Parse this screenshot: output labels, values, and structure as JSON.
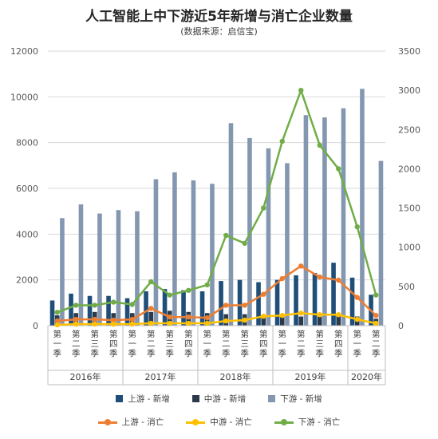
{
  "title": "人工智能上中下游近5年新增与消亡企业数量",
  "subtitle": "(数据来源：启信宝)",
  "chart_data": {
    "type": "bar+line",
    "categories": [
      "第一季",
      "第二季",
      "第三季",
      "第四季",
      "第一季",
      "第二季",
      "第三季",
      "第四季",
      "第一季",
      "第二季",
      "第三季",
      "第四季",
      "第一季",
      "第二季",
      "第三季",
      "第四季",
      "第一季",
      "第二季"
    ],
    "years": [
      {
        "label": "2016年",
        "span": 4
      },
      {
        "label": "2017年",
        "span": 4
      },
      {
        "label": "2018年",
        "span": 4
      },
      {
        "label": "2019年",
        "span": 4
      },
      {
        "label": "2020年",
        "span": 2
      }
    ],
    "left_axis": {
      "min": 0,
      "max": 12000,
      "ticks": [
        0,
        2000,
        4000,
        6000,
        8000,
        10000,
        12000
      ]
    },
    "right_axis": {
      "min": 0,
      "max": 3500,
      "ticks": [
        0,
        500,
        1000,
        1500,
        2000,
        2500,
        3000,
        3500
      ]
    },
    "bar_series": [
      {
        "name": "上游 - 新增",
        "color": "#1f4e79",
        "values": [
          1100,
          1400,
          1300,
          1300,
          1200,
          1500,
          1600,
          1550,
          1500,
          1950,
          2000,
          1900,
          2000,
          2200,
          2300,
          2750,
          2100,
          1350
        ]
      },
      {
        "name": "中游 - 新增",
        "color": "#2b3a4a",
        "values": [
          450,
          550,
          600,
          550,
          550,
          600,
          650,
          600,
          550,
          500,
          500,
          450,
          450,
          400,
          400,
          450,
          400,
          300
        ]
      },
      {
        "name": "下游 - 新增",
        "color": "#8497b0",
        "values": [
          4700,
          5300,
          4900,
          5050,
          5000,
          6400,
          6700,
          6350,
          6200,
          8850,
          8200,
          7750,
          7100,
          9200,
          9100,
          9500,
          10350,
          7200
        ]
      }
    ],
    "line_series": [
      {
        "name": "上游 - 消亡",
        "color": "#ed7d31",
        "values": [
          60,
          80,
          80,
          70,
          80,
          220,
          110,
          110,
          100,
          260,
          260,
          400,
          600,
          760,
          620,
          580,
          360,
          130
        ]
      },
      {
        "name": "中游 - 消亡",
        "color": "#ffc000",
        "values": [
          10,
          20,
          20,
          20,
          20,
          30,
          30,
          30,
          30,
          60,
          70,
          120,
          130,
          160,
          140,
          140,
          80,
          30
        ]
      },
      {
        "name": "下游 - 消亡",
        "color": "#70ad47",
        "values": [
          170,
          260,
          260,
          300,
          270,
          560,
          390,
          450,
          520,
          1150,
          1050,
          1500,
          2350,
          3000,
          2300,
          2000,
          1260,
          390
        ]
      }
    ],
    "legend_position": "bottom"
  }
}
